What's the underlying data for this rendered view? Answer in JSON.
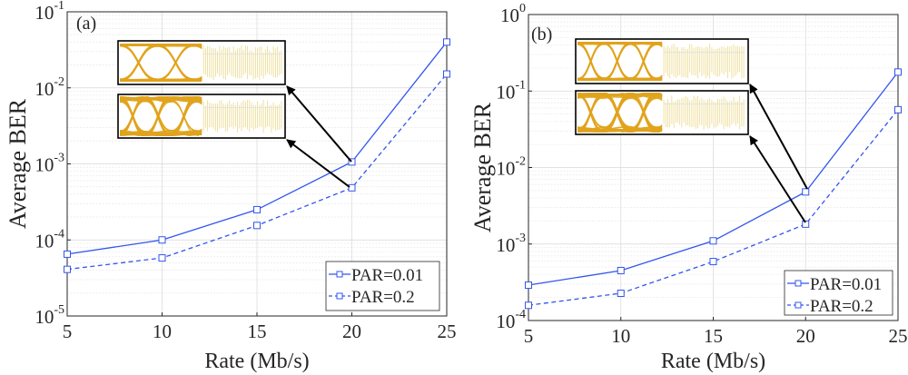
{
  "chart_data": [
    {
      "type": "line",
      "panel_label": "(a)",
      "xlabel": "Rate (Mb/s)",
      "ylabel": "Average BER",
      "x": [
        5,
        10,
        15,
        20,
        25
      ],
      "xlim": [
        5,
        25
      ],
      "ylim": [
        1e-05,
        0.1
      ],
      "yscale": "log",
      "xticks": [
        "5",
        "10",
        "15",
        "20",
        "25"
      ],
      "yticks": [
        {
          "base": "10",
          "exp": "-5"
        },
        {
          "base": "10",
          "exp": "-4"
        },
        {
          "base": "10",
          "exp": "-3"
        },
        {
          "base": "10",
          "exp": "-2"
        },
        {
          "base": "10",
          "exp": "-1"
        }
      ],
      "grid": true,
      "legend_position": "bottom-right",
      "series": [
        {
          "name": "PAR=0.01",
          "style": "solid",
          "marker": "square",
          "color": "#3355ee",
          "values": [
            6.5e-05,
            0.0001,
            0.00025,
            0.00106,
            0.04
          ]
        },
        {
          "name": "PAR=0.2",
          "style": "dashed",
          "marker": "square",
          "color": "#3355ee",
          "values": [
            4.1e-05,
            5.8e-05,
            0.000155,
            0.000485,
            0.0152
          ]
        }
      ],
      "annotations": [
        "eye-diagram inset (PAR=0.01 at 20 Mb/s)",
        "eye-diagram inset (PAR=0.2 at 20 Mb/s)"
      ]
    },
    {
      "type": "line",
      "panel_label": "(b)",
      "xlabel": "Rate (Mb/s)",
      "ylabel": "Average BER",
      "x": [
        5,
        10,
        15,
        20,
        25
      ],
      "xlim": [
        5,
        25
      ],
      "ylim": [
        0.0001,
        1
      ],
      "yscale": "log",
      "xticks": [
        "5",
        "10",
        "15",
        "20",
        "25"
      ],
      "yticks": [
        {
          "base": "10",
          "exp": "-4"
        },
        {
          "base": "10",
          "exp": "-3"
        },
        {
          "base": "10",
          "exp": "-2"
        },
        {
          "base": "10",
          "exp": "-1"
        },
        {
          "base": "10",
          "exp": "0"
        }
      ],
      "grid": true,
      "legend_position": "bottom-right",
      "series": [
        {
          "name": "PAR=0.01",
          "style": "solid",
          "marker": "square",
          "color": "#3355ee",
          "values": [
            0.00029,
            0.00045,
            0.0011,
            0.0048,
            0.177
          ]
        },
        {
          "name": "PAR=0.2",
          "style": "dashed",
          "marker": "square",
          "color": "#3355ee",
          "values": [
            0.000158,
            0.000227,
            0.00059,
            0.00182,
            0.057
          ]
        }
      ],
      "annotations": [
        "eye-diagram inset (PAR=0.01 at 20 Mb/s)",
        "eye-diagram inset (PAR=0.2 at 20 Mb/s)"
      ]
    }
  ],
  "colors": {
    "series": "#3355ee",
    "eye": "#e0a31c",
    "eye_faint": "#ecd98a",
    "axis": "#262626",
    "grid": "#dcdcdc"
  }
}
